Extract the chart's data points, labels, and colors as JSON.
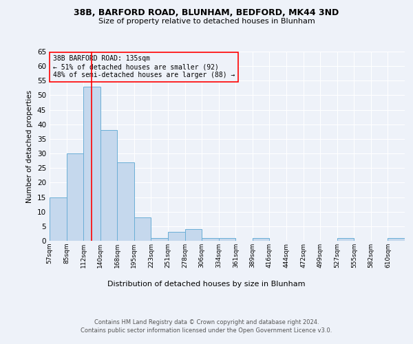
{
  "title1": "38B, BARFORD ROAD, BLUNHAM, BEDFORD, MK44 3ND",
  "title2": "Size of property relative to detached houses in Blunham",
  "xlabel": "Distribution of detached houses by size in Blunham",
  "ylabel": "Number of detached properties",
  "bar_color": "#c5d8ed",
  "bar_edge_color": "#6aaed6",
  "bar_values": [
    15,
    30,
    53,
    38,
    27,
    8,
    1,
    3,
    4,
    1,
    1,
    0,
    1,
    0,
    0,
    0,
    0,
    1,
    0,
    0,
    1
  ],
  "x_labels": [
    "57sqm",
    "85sqm",
    "112sqm",
    "140sqm",
    "168sqm",
    "195sqm",
    "223sqm",
    "251sqm",
    "278sqm",
    "306sqm",
    "334sqm",
    "361sqm",
    "389sqm",
    "416sqm",
    "444sqm",
    "472sqm",
    "499sqm",
    "527sqm",
    "555sqm",
    "582sqm",
    "610sqm"
  ],
  "ylim": [
    0,
    65
  ],
  "yticks": [
    0,
    5,
    10,
    15,
    20,
    25,
    30,
    35,
    40,
    45,
    50,
    55,
    60,
    65
  ],
  "red_line_x": 2.5,
  "annotation_text1": "38B BARFORD ROAD: 135sqm",
  "annotation_text2": "← 51% of detached houses are smaller (92)",
  "annotation_text3": "48% of semi-detached houses are larger (88) →",
  "footer1": "Contains HM Land Registry data © Crown copyright and database right 2024.",
  "footer2": "Contains public sector information licensed under the Open Government Licence v3.0.",
  "background_color": "#eef2f9",
  "grid_color": "#ffffff"
}
